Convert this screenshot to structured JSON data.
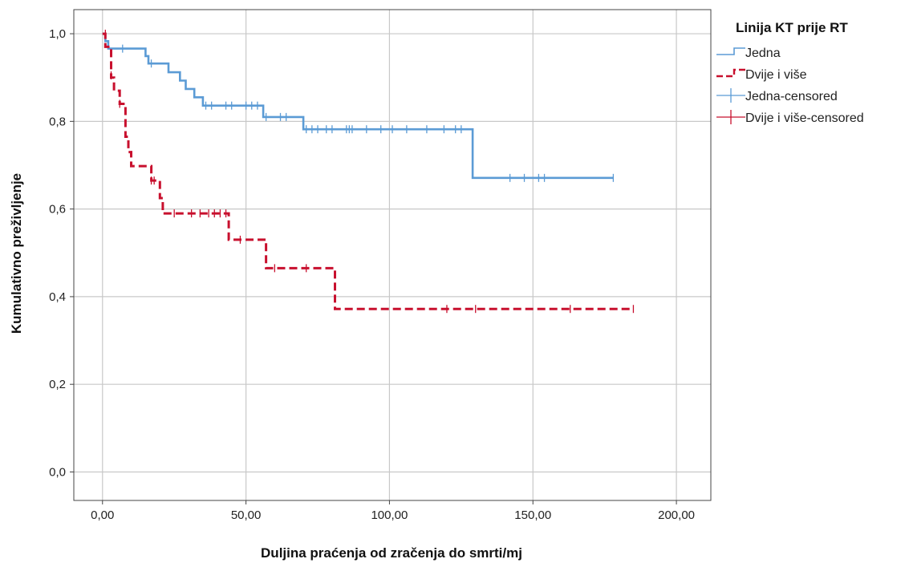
{
  "chart_data": {
    "type": "line",
    "subtype": "kaplan-meier",
    "xlabel": "Duljina praćenja od zračenja do smrti/mj",
    "ylabel": "Kumulativno preživljenje",
    "xlim": [
      -10,
      212
    ],
    "ylim": [
      -0.065,
      1.055
    ],
    "xticks": [
      0,
      50,
      100,
      150,
      200
    ],
    "xtick_labels": [
      "0,00",
      "50,00",
      "100,00",
      "150,00",
      "200,00"
    ],
    "yticks": [
      0,
      0.2,
      0.4,
      0.6,
      0.8,
      1.0
    ],
    "ytick_labels": [
      "0,0",
      "0,2",
      "0,4",
      "0,6",
      "0,8",
      "1,0"
    ],
    "grid": true,
    "legend": {
      "title": "Linija KT prije RT",
      "position": "right",
      "entries": [
        "Jedna",
        "Dvije i više",
        "Jedna-censored",
        "Dvije i više-censored"
      ]
    },
    "series": [
      {
        "name": "Jedna",
        "color": "#5b9bd5",
        "line_style": "solid",
        "steps": [
          [
            0,
            1.0
          ],
          [
            1,
            0.983
          ],
          [
            2,
            0.966
          ],
          [
            15,
            0.949
          ],
          [
            16,
            0.932
          ],
          [
            23,
            0.912
          ],
          [
            27,
            0.893
          ],
          [
            29,
            0.874
          ],
          [
            32,
            0.855
          ],
          [
            35,
            0.836
          ],
          [
            56,
            0.81
          ],
          [
            70,
            0.782
          ],
          [
            129,
            0.671
          ],
          [
            178,
            0.671
          ]
        ],
        "censored": [
          [
            7,
            0.966
          ],
          [
            17,
            0.932
          ],
          [
            36,
            0.836
          ],
          [
            38,
            0.836
          ],
          [
            43,
            0.836
          ],
          [
            45,
            0.836
          ],
          [
            50,
            0.836
          ],
          [
            52,
            0.836
          ],
          [
            54,
            0.836
          ],
          [
            57,
            0.81
          ],
          [
            62,
            0.81
          ],
          [
            64,
            0.81
          ],
          [
            71,
            0.782
          ],
          [
            73,
            0.782
          ],
          [
            75,
            0.782
          ],
          [
            78,
            0.782
          ],
          [
            80,
            0.782
          ],
          [
            85,
            0.782
          ],
          [
            86,
            0.782
          ],
          [
            87,
            0.782
          ],
          [
            92,
            0.782
          ],
          [
            97,
            0.782
          ],
          [
            101,
            0.782
          ],
          [
            106,
            0.782
          ],
          [
            113,
            0.782
          ],
          [
            119,
            0.782
          ],
          [
            123,
            0.782
          ],
          [
            125,
            0.782
          ],
          [
            142,
            0.671
          ],
          [
            147,
            0.671
          ],
          [
            152,
            0.671
          ],
          [
            154,
            0.671
          ],
          [
            178,
            0.671
          ]
        ]
      },
      {
        "name": "Dvije i više",
        "color": "#c8102e",
        "line_style": "dashed",
        "steps": [
          [
            0,
            1.0
          ],
          [
            1,
            0.97
          ],
          [
            3,
            0.9
          ],
          [
            4,
            0.87
          ],
          [
            6,
            0.84
          ],
          [
            8,
            0.765
          ],
          [
            9,
            0.73
          ],
          [
            10,
            0.698
          ],
          [
            17,
            0.665
          ],
          [
            20,
            0.625
          ],
          [
            21,
            0.59
          ],
          [
            44,
            0.53
          ],
          [
            57,
            0.465
          ],
          [
            81,
            0.372
          ],
          [
            185,
            0.372
          ]
        ],
        "censored": [
          [
            1,
            1.0
          ],
          [
            3,
            0.905
          ],
          [
            6,
            0.84
          ],
          [
            17,
            0.665
          ],
          [
            18,
            0.665
          ],
          [
            25,
            0.59
          ],
          [
            31,
            0.59
          ],
          [
            34,
            0.59
          ],
          [
            37,
            0.59
          ],
          [
            39,
            0.59
          ],
          [
            41,
            0.59
          ],
          [
            43,
            0.59
          ],
          [
            48,
            0.53
          ],
          [
            60,
            0.465
          ],
          [
            71,
            0.465
          ],
          [
            120,
            0.372
          ],
          [
            130,
            0.372
          ],
          [
            163,
            0.372
          ],
          [
            185,
            0.372
          ]
        ]
      }
    ]
  }
}
